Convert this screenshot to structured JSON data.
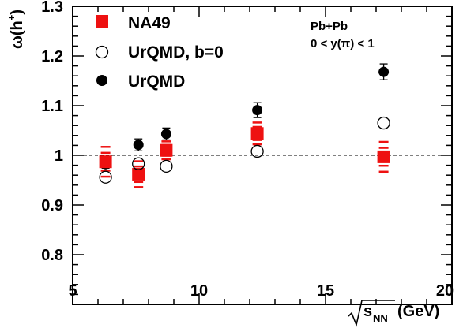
{
  "chart_data": {
    "type": "scatter",
    "xlim": [
      5,
      20
    ],
    "ylim": [
      0.7,
      1.3
    ],
    "x_ticks": [
      "5",
      "10",
      "15",
      "20"
    ],
    "y_ticks": [
      "0.8",
      "0.9",
      "1",
      "1.1",
      "1.2",
      "1.3"
    ],
    "reference_line": {
      "y": 1,
      "style": "dashed"
    },
    "xlabel": {
      "main": "s",
      "sub": "NN",
      "unit": "(GeV)"
    },
    "ylabel": {
      "prefix": "ω(h",
      "sup": "+",
      "suffix": ")"
    },
    "annotations": [
      "Pb+Pb",
      "0 < y(π) < 1"
    ],
    "legend_position": "top-left",
    "series": [
      {
        "name": "NA49",
        "marker": "filled-square",
        "color": "#ee1111",
        "x": [
          6.3,
          7.6,
          8.7,
          12.3,
          17.3
        ],
        "y": [
          0.987,
          0.962,
          1.01,
          1.044,
          0.997
        ],
        "err": [
          0.01,
          0.01,
          0.01,
          0.012,
          0.01
        ],
        "sys": [
          0.03,
          0.026,
          0.018,
          0.022,
          0.03
        ]
      },
      {
        "name": "UrQMD, b=0",
        "marker": "open-circle",
        "color": "#000000",
        "x": [
          6.3,
          7.6,
          8.7,
          12.3,
          17.3
        ],
        "y": [
          0.956,
          0.983,
          0.978,
          1.008,
          1.065
        ],
        "err": [
          0,
          0,
          0,
          0,
          0
        ]
      },
      {
        "name": "UrQMD",
        "marker": "filled-circle",
        "color": "#000000",
        "x": [
          6.3,
          7.6,
          8.7,
          12.3,
          17.3
        ],
        "y": [
          0.982,
          1.021,
          1.043,
          1.091,
          1.168
        ],
        "err": [
          0.008,
          0.012,
          0.012,
          0.015,
          0.016
        ]
      }
    ]
  }
}
